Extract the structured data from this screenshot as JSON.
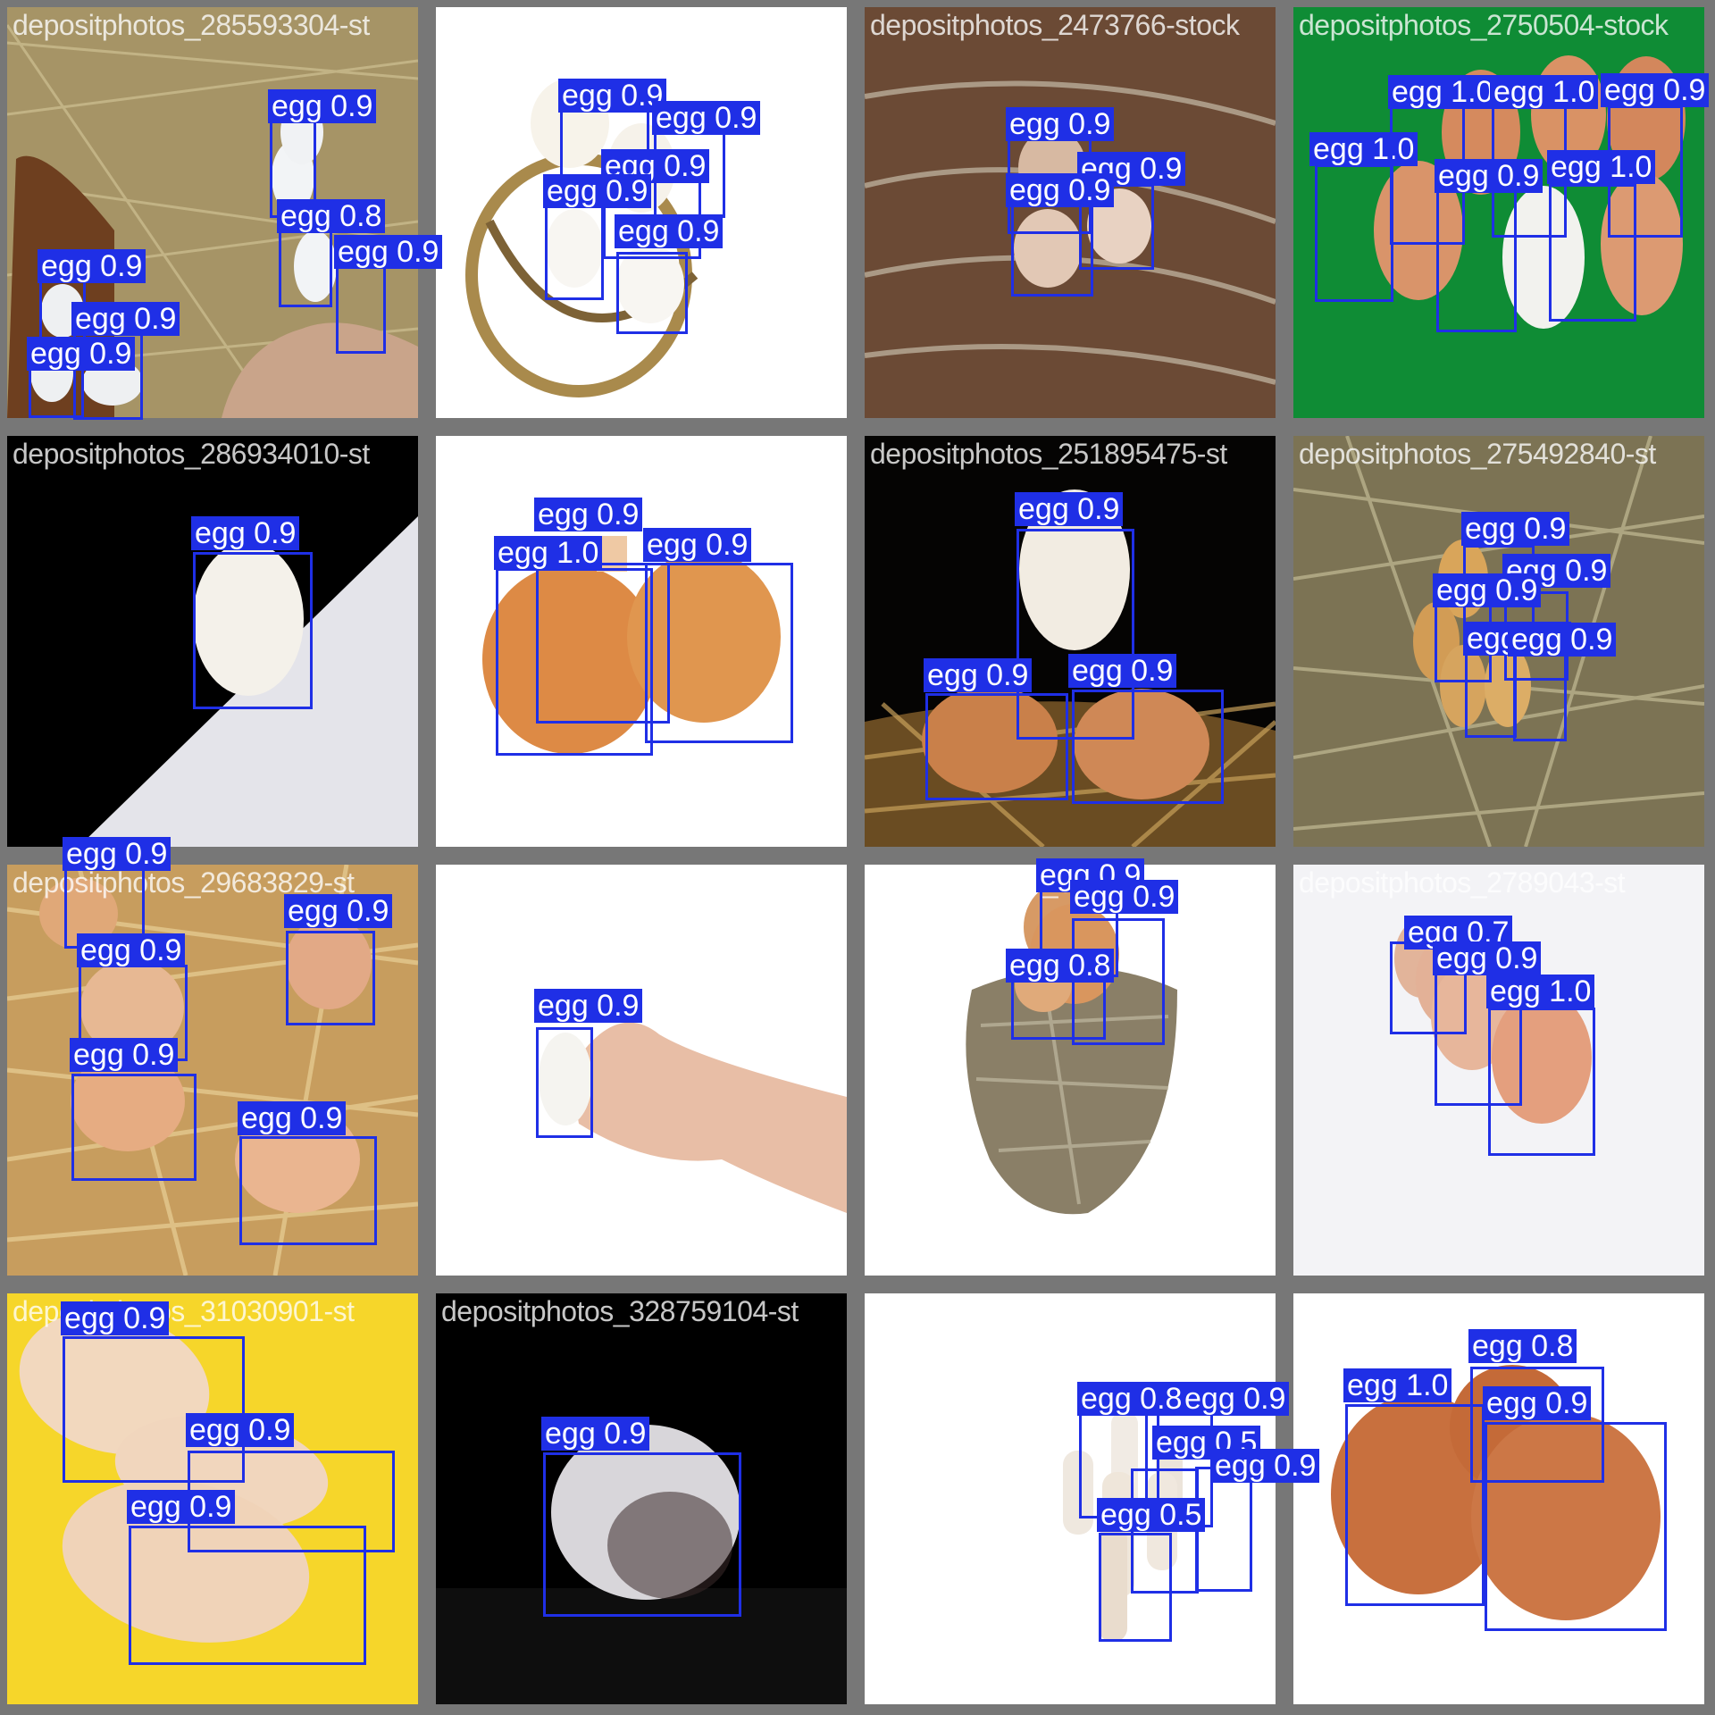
{
  "colors": {
    "box": "#1f2fe6",
    "label_text": "#ffffff",
    "frame": "#777777"
  },
  "tiles": [
    {
      "file": "depositphotos_285593304-st",
      "scene": "straw"
    },
    {
      "file": "depositphotos_32297177-stock-photo",
      "scene": "white"
    },
    {
      "file": "depositphotos_2473766-stock",
      "scene": "nest"
    },
    {
      "file": "depositphotos_2750504-stock",
      "scene": "green"
    },
    {
      "file": "depositphotos_286934010-st",
      "scene": "diag"
    },
    {
      "file": "depositphotos_3245067-stock",
      "scene": "white"
    },
    {
      "file": "depositphotos_251895475-st",
      "scene": "dark"
    },
    {
      "file": "depositphotos_275492840-st",
      "scene": "straw"
    },
    {
      "file": "depositphotos_29683829-st",
      "scene": "hay"
    },
    {
      "file": "depositphotos_327234652-st",
      "scene": "white"
    },
    {
      "file": "depositphotos_53064-st",
      "scene": "white"
    },
    {
      "file": "depositphotos_2789043-st",
      "scene": "white"
    },
    {
      "file": "depositphotos_31030901-st",
      "scene": "yellow"
    },
    {
      "file": "depositphotos_328759104-st",
      "scene": "black"
    },
    {
      "file": "depositphotos_265626130-st",
      "scene": "white"
    },
    {
      "file": "depositphotos_2842093-st",
      "scene": "white"
    }
  ],
  "detections": [
    {
      "label": "egg 0.9"
    },
    {
      "label": "egg 0.8"
    },
    {
      "label": "egg 0.9"
    },
    {
      "label": "egg 0.9"
    },
    {
      "label": "egg 0.9"
    },
    {
      "label": "egg 0.9"
    },
    {
      "label": "egg 0.9"
    },
    {
      "label": "egg 0.9"
    },
    {
      "label": "egg 0.9"
    },
    {
      "label": "egg 0.9"
    },
    {
      "label": "egg 0.9"
    },
    {
      "label": "egg 0.9"
    },
    {
      "label": "egg 0.9"
    },
    {
      "label": "egg 0.9"
    },
    {
      "label": "egg 1.0"
    },
    {
      "label": "egg 1.0"
    },
    {
      "label": "egg 0.9"
    },
    {
      "label": "egg 1.0"
    },
    {
      "label": "egg 0.9"
    },
    {
      "label": "egg 1.0"
    },
    {
      "label": "egg 0.9"
    },
    {
      "label": "egg 0.9"
    },
    {
      "label": "egg 1.0"
    },
    {
      "label": "egg 0.9"
    },
    {
      "label": "egg 0.9"
    },
    {
      "label": "egg 0.9"
    },
    {
      "label": "egg 0.9"
    },
    {
      "label": "egg 0.9"
    },
    {
      "label": "egg 0.9"
    },
    {
      "label": "egg 0.9"
    },
    {
      "label": "egg 0.9"
    },
    {
      "label": "egg 0.9"
    },
    {
      "label": "egg 0.9"
    },
    {
      "label": "egg 0.9"
    },
    {
      "label": "egg 0.9"
    },
    {
      "label": "egg 0.9"
    },
    {
      "label": "egg 0.9"
    },
    {
      "label": "egg 0.9"
    },
    {
      "label": "egg 0.9"
    },
    {
      "label": "egg 0.9"
    },
    {
      "label": "egg 0.8"
    },
    {
      "label": "egg 0.7"
    },
    {
      "label": "egg 0.9"
    },
    {
      "label": "egg 1.0"
    },
    {
      "label": "egg 0.9"
    },
    {
      "label": "egg 0.9"
    },
    {
      "label": "egg 0.9"
    },
    {
      "label": "egg 0.9"
    },
    {
      "label": "egg 0.8"
    },
    {
      "label": "egg 0.9"
    },
    {
      "label": "egg 0.5"
    },
    {
      "label": "egg 0.9"
    },
    {
      "label": "egg 0.5"
    },
    {
      "label": "egg 1.0"
    },
    {
      "label": "egg 0.8"
    },
    {
      "label": "egg 0.9"
    }
  ]
}
